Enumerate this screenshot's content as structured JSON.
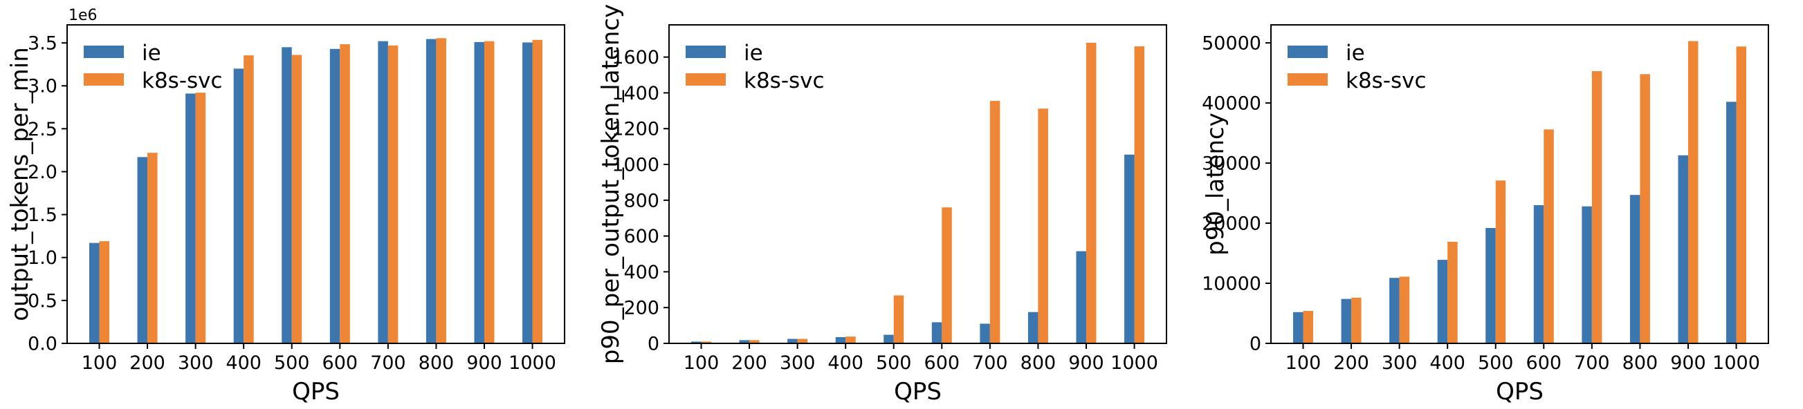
{
  "figure": {
    "background": "#ffffff",
    "series_colors": {
      "ie": "#3b76af",
      "k8s-svc": "#ef8636"
    },
    "axis_color": "#000000",
    "legend": {
      "position": "upper left",
      "frame": false,
      "items": [
        {
          "label": "ie",
          "color": "#3b76af"
        },
        {
          "label": "k8s-svc",
          "color": "#ef8636"
        }
      ]
    }
  },
  "chart_data": [
    {
      "type": "bar",
      "title": "",
      "ylabel": "output_tokens_per_min",
      "xlabel": "QPS",
      "offset_text": "1e6",
      "unit_multiplier": 1000000,
      "grid": false,
      "legend_position": "upper left",
      "categories": [
        100,
        200,
        300,
        400,
        500,
        600,
        700,
        800,
        900,
        1000
      ],
      "series": [
        {
          "name": "ie",
          "values": [
            1170000,
            2170000,
            2910000,
            3200000,
            3450000,
            3430000,
            3520000,
            3545000,
            3510000,
            3505000
          ]
        },
        {
          "name": "k8s-svc",
          "values": [
            1190000,
            2220000,
            2920000,
            3355000,
            3360000,
            3485000,
            3470000,
            3555000,
            3520000,
            3535000
          ]
        }
      ],
      "ylim": [
        0,
        3710000
      ],
      "yticks": [
        0,
        500000,
        1000000,
        1500000,
        2000000,
        2500000,
        3000000,
        3500000
      ],
      "ytick_labels": [
        "0.0",
        "0.5",
        "1.0",
        "1.5",
        "2.0",
        "2.5",
        "3.0",
        "3.5"
      ]
    },
    {
      "type": "bar",
      "title": "",
      "ylabel": "p90_per_output_token_latency",
      "xlabel": "QPS",
      "offset_text": "",
      "unit_multiplier": 1,
      "grid": false,
      "legend_position": "upper left",
      "categories": [
        100,
        200,
        300,
        400,
        500,
        600,
        700,
        800,
        900,
        1000
      ],
      "series": [
        {
          "name": "ie",
          "values": [
            10,
            18,
            25,
            35,
            48,
            118,
            110,
            175,
            515,
            1055
          ]
        },
        {
          "name": "k8s-svc",
          "values": [
            10,
            18,
            25,
            38,
            268,
            760,
            1355,
            1312,
            1680,
            1660
          ]
        }
      ],
      "ylim": [
        0,
        1780
      ],
      "yticks": [
        0,
        200,
        400,
        600,
        800,
        1000,
        1200,
        1400,
        1600
      ],
      "ytick_labels": [
        "0",
        "200",
        "400",
        "600",
        "800",
        "1000",
        "1200",
        "1400",
        "1600"
      ]
    },
    {
      "type": "bar",
      "title": "",
      "ylabel": "p90_latency",
      "xlabel": "QPS",
      "offset_text": "",
      "unit_multiplier": 1,
      "grid": false,
      "legend_position": "upper left",
      "categories": [
        100,
        200,
        300,
        400,
        500,
        600,
        700,
        800,
        900,
        1000
      ],
      "series": [
        {
          "name": "ie",
          "values": [
            5200,
            7400,
            10900,
            13900,
            19200,
            23000,
            22800,
            24700,
            31300,
            40200
          ]
        },
        {
          "name": "k8s-svc",
          "values": [
            5400,
            7600,
            11100,
            16900,
            27100,
            35600,
            45300,
            44800,
            50300,
            49400
          ]
        }
      ],
      "ylim": [
        0,
        53000
      ],
      "yticks": [
        0,
        10000,
        20000,
        30000,
        40000,
        50000
      ],
      "ytick_labels": [
        "0",
        "10000",
        "20000",
        "30000",
        "40000",
        "50000"
      ]
    }
  ]
}
